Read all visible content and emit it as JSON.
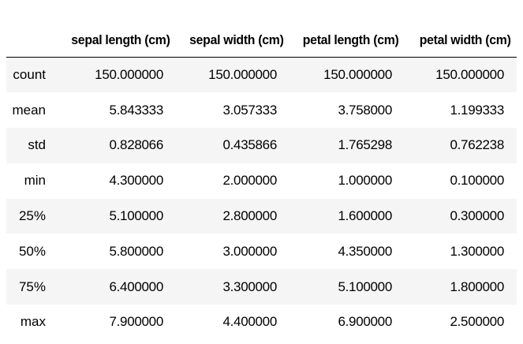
{
  "table": {
    "columns": [
      "sepal length (cm)",
      "sepal width (cm)",
      "petal length (cm)",
      "petal width (cm)"
    ],
    "rows": [
      {
        "label": "count",
        "values": [
          "150.000000",
          "150.000000",
          "150.000000",
          "150.000000"
        ]
      },
      {
        "label": "mean",
        "values": [
          "5.843333",
          "3.057333",
          "3.758000",
          "1.199333"
        ]
      },
      {
        "label": "std",
        "values": [
          "0.828066",
          "0.435866",
          "1.765298",
          "0.762238"
        ]
      },
      {
        "label": "min",
        "values": [
          "4.300000",
          "2.000000",
          "1.000000",
          "0.100000"
        ]
      },
      {
        "label": "25%",
        "values": [
          "5.100000",
          "2.800000",
          "1.600000",
          "0.300000"
        ]
      },
      {
        "label": "50%",
        "values": [
          "5.800000",
          "3.000000",
          "4.350000",
          "1.300000"
        ]
      },
      {
        "label": "75%",
        "values": [
          "6.400000",
          "3.300000",
          "5.100000",
          "1.800000"
        ]
      },
      {
        "label": "max",
        "values": [
          "7.900000",
          "4.400000",
          "6.900000",
          "2.500000"
        ]
      }
    ]
  },
  "colors": {
    "stripe": "#f5f5f5",
    "background": "#ffffff",
    "text": "#000000",
    "header_rule": "#000000"
  }
}
